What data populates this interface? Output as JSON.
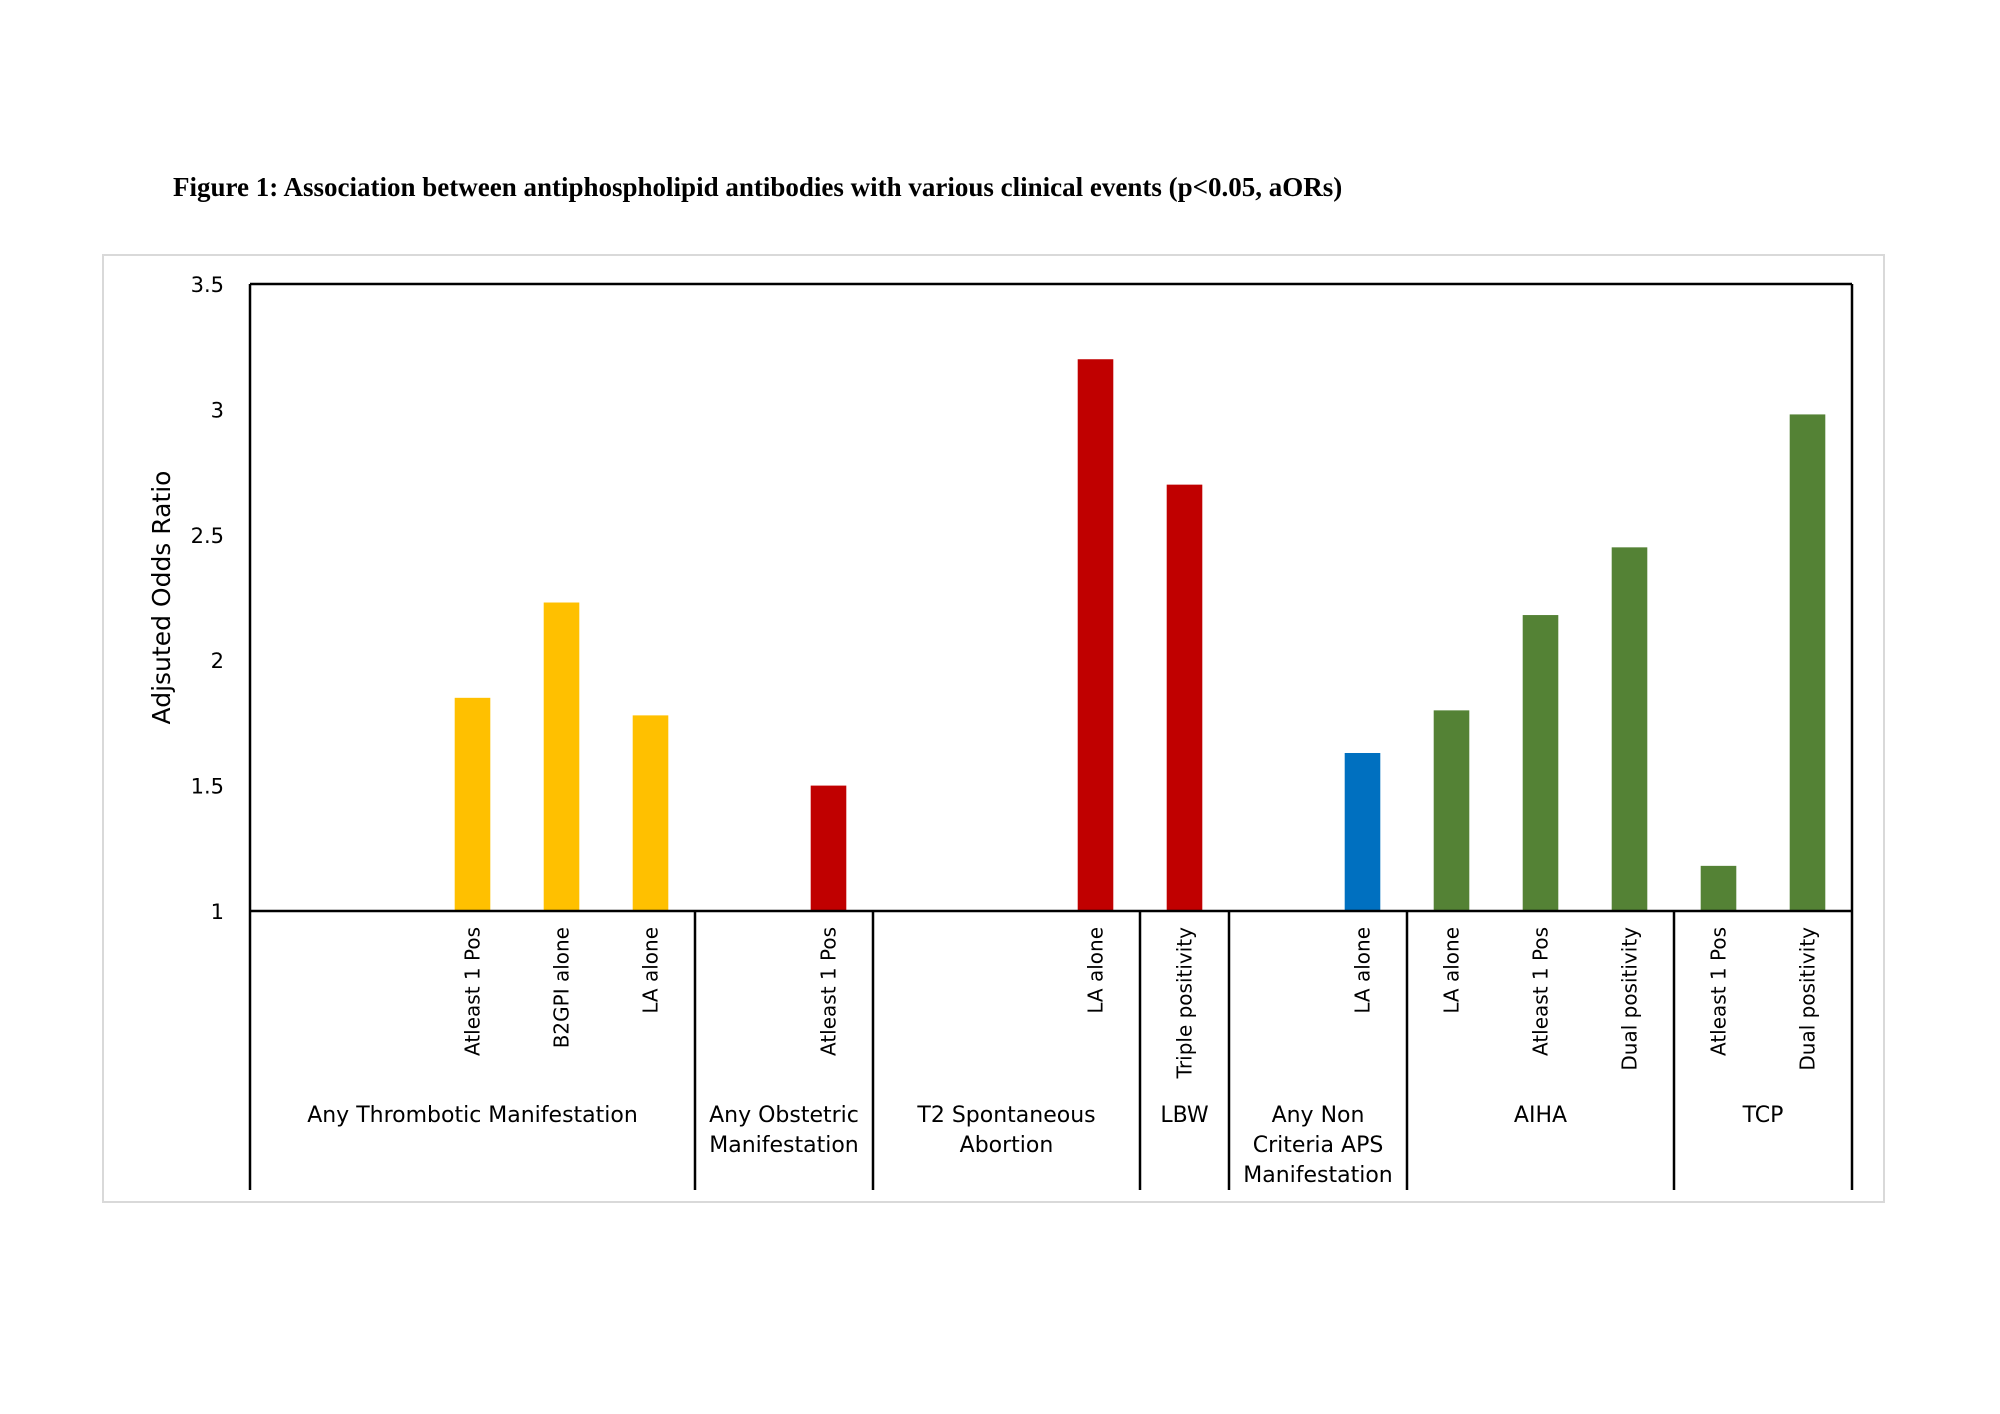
{
  "figure": {
    "title": "Figure 1: Association between antiphospholipid antibodies with various clinical events (p<0.05, aORs)"
  },
  "chart_data": {
    "type": "bar",
    "ylabel": "Adjsuted Odds Ratio",
    "xlabel": "",
    "ylim": [
      1,
      3.5
    ],
    "yticks": [
      1,
      1.5,
      2,
      2.5,
      3,
      3.5
    ],
    "ytick_labels": [
      "1",
      "1.5",
      "2",
      "2.5",
      "3",
      "3.5"
    ],
    "grid": false,
    "legend": "none",
    "colors": {
      "thrombotic": "#FFC000",
      "obstetric": "#C00000",
      "non_criteria": "#0070C0",
      "hematologic": "#548235"
    },
    "groups": [
      {
        "name": "Any Thrombotic Manifestation",
        "lines": [
          "Any Thrombotic Manifestation"
        ],
        "slots": 5
      },
      {
        "name": "Any Obstetric Manifestation",
        "lines": [
          "Any Obstetric",
          "Manifestation"
        ],
        "slots": 2
      },
      {
        "name": "T2 Spontaneous Abortion",
        "lines": [
          "T2 Spontaneous",
          "Abortion"
        ],
        "slots": 3
      },
      {
        "name": "LBW",
        "lines": [
          "LBW"
        ],
        "slots": 1
      },
      {
        "name": "Any Non Criteria APS Manifestation",
        "lines": [
          "Any Non",
          "Criteria APS",
          "Manifestation"
        ],
        "slots": 2
      },
      {
        "name": "AIHA",
        "lines": [
          "AIHA"
        ],
        "slots": 3
      },
      {
        "name": "TCP",
        "lines": [
          "TCP"
        ],
        "slots": 2
      }
    ],
    "bars": [
      {
        "group": 0,
        "label": "Atleast 1 Pos",
        "value": 1.85,
        "color": "#FFC000"
      },
      {
        "group": 0,
        "label": "B2GPI alone",
        "value": 2.23,
        "color": "#FFC000"
      },
      {
        "group": 0,
        "label": "LA alone",
        "value": 1.78,
        "color": "#FFC000"
      },
      {
        "group": 1,
        "label": "Atleast 1 Pos",
        "value": 1.5,
        "color": "#C00000"
      },
      {
        "group": 2,
        "label": "LA alone",
        "value": 3.2,
        "color": "#C00000"
      },
      {
        "group": 3,
        "label": "Triple positivity",
        "value": 2.7,
        "color": "#C00000"
      },
      {
        "group": 4,
        "label": "LA alone",
        "value": 1.63,
        "color": "#0070C0"
      },
      {
        "group": 5,
        "label": "LA alone",
        "value": 1.8,
        "color": "#548235"
      },
      {
        "group": 5,
        "label": "Atleast 1 Pos",
        "value": 2.18,
        "color": "#548235"
      },
      {
        "group": 5,
        "label": "Dual positivity",
        "value": 2.45,
        "color": "#548235"
      },
      {
        "group": 6,
        "label": "Atleast 1 Pos",
        "value": 1.18,
        "color": "#548235"
      },
      {
        "group": 6,
        "label": "Dual positivity",
        "value": 2.98,
        "color": "#548235"
      }
    ]
  }
}
